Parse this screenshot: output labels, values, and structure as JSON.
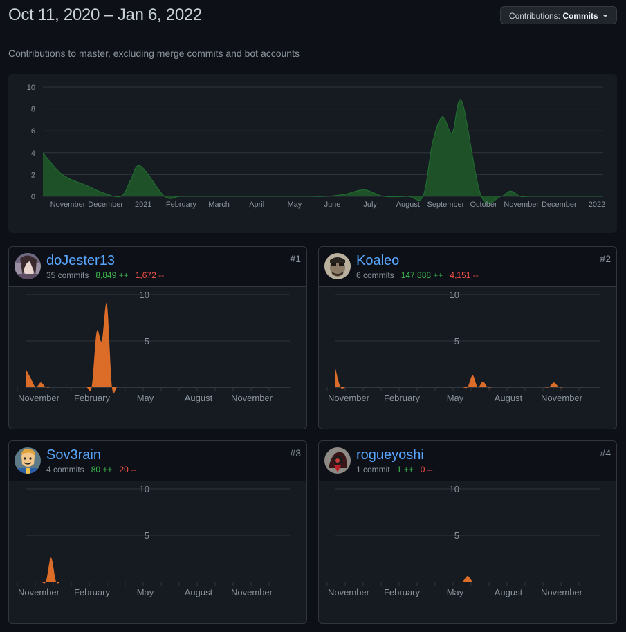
{
  "header": {
    "title": "Oct 11, 2020 – Jan 6, 2022",
    "dropdown_prefix": "Contributions:",
    "dropdown_value": "Commits"
  },
  "subtitle": "Contributions to master, excluding merge commits and bot accounts",
  "colors": {
    "main_fill": "#1e5127",
    "main_stroke": "#26a641",
    "user_fill": "#db6d28",
    "grid": "#30363d",
    "tick": "#8b949e"
  },
  "chart_data": [
    {
      "type": "area",
      "title": "Commits over time (all contributors)",
      "y_ticks": [
        "0",
        "2",
        "4",
        "6",
        "8",
        "10"
      ],
      "ylim": [
        0,
        10
      ],
      "x_labels": [
        "November",
        "December",
        "2021",
        "February",
        "March",
        "April",
        "May",
        "June",
        "July",
        "August",
        "September",
        "October",
        "November",
        "December",
        "2022"
      ],
      "x": [
        0,
        4,
        9,
        12,
        16,
        18,
        20,
        25,
        28,
        30,
        35,
        38,
        40,
        42,
        44,
        46,
        48,
        50,
        52,
        55,
        58,
        62,
        66,
        70,
        75,
        78,
        80,
        82,
        84,
        86,
        90,
        94,
        96,
        98,
        100,
        108,
        115
      ],
      "series": [
        {
          "name": "Commits",
          "values": [
            4,
            2,
            1,
            0.4,
            0,
            1.5,
            2.8,
            0,
            0,
            0,
            0,
            0,
            0,
            0,
            0,
            0,
            0,
            0,
            0,
            0,
            0,
            0.2,
            0.6,
            0,
            0,
            0,
            5,
            7.3,
            5.8,
            8.7,
            0,
            0,
            0.5,
            0,
            0,
            0,
            0
          ]
        }
      ]
    },
    {
      "type": "area",
      "title": "doJester13 commits",
      "y_ticks": [
        "5",
        "10"
      ],
      "ylim": [
        0,
        10
      ],
      "x_labels": [
        "November",
        "February",
        "May",
        "August",
        "November"
      ],
      "series": [
        {
          "name": "doJester13",
          "values": [
            2,
            1,
            0,
            0.5,
            0,
            0,
            0,
            0,
            0,
            0,
            0,
            0,
            0,
            0,
            6,
            5,
            9,
            0,
            0,
            0,
            0,
            0,
            0,
            0,
            0,
            0,
            0,
            0,
            0,
            0,
            0,
            0,
            0,
            0,
            0,
            0,
            0,
            0,
            0,
            0,
            0,
            0,
            0,
            0,
            0,
            0,
            0,
            0,
            0,
            0,
            0,
            0,
            0
          ]
        }
      ]
    },
    {
      "type": "area",
      "title": "Koaleo commits",
      "y_ticks": [
        "5",
        "10"
      ],
      "ylim": [
        0,
        10
      ],
      "x_labels": [
        "November",
        "February",
        "May",
        "August",
        "November"
      ],
      "series": [
        {
          "name": "Koaleo",
          "values": [
            2,
            0,
            0,
            0,
            0,
            0,
            0,
            0,
            0,
            0,
            0,
            0,
            0,
            0,
            0,
            0,
            0,
            0,
            0,
            0,
            0,
            0,
            0,
            0,
            0,
            0,
            0,
            1.3,
            0,
            0.6,
            0,
            0,
            0,
            0,
            0,
            0,
            0,
            0,
            0,
            0,
            0,
            0,
            0,
            0.5,
            0,
            0,
            0,
            0,
            0,
            0,
            0,
            0,
            0
          ]
        }
      ]
    },
    {
      "type": "area",
      "title": "Sov3rain commits",
      "y_ticks": [
        "5",
        "10"
      ],
      "ylim": [
        0,
        10
      ],
      "x_labels": [
        "November",
        "February",
        "May",
        "August",
        "November"
      ],
      "series": [
        {
          "name": "Sov3rain",
          "values": [
            0,
            0,
            0,
            0,
            0,
            2.6,
            0,
            0,
            0,
            0,
            0,
            0,
            0,
            0,
            0,
            0,
            0,
            0,
            0,
            0,
            0,
            0,
            0,
            0,
            0,
            0,
            0,
            0,
            0,
            0,
            0,
            0,
            0,
            0,
            0,
            0,
            0,
            0,
            0,
            0,
            0,
            0,
            0,
            0,
            0,
            0,
            0,
            0,
            0,
            0,
            0,
            0,
            0
          ]
        }
      ]
    },
    {
      "type": "area",
      "title": "rogueyoshi commits",
      "y_ticks": [
        "5",
        "10"
      ],
      "ylim": [
        0,
        10
      ],
      "x_labels": [
        "November",
        "February",
        "May",
        "August",
        "November"
      ],
      "series": [
        {
          "name": "rogueyoshi",
          "values": [
            0,
            0,
            0,
            0,
            0,
            0,
            0,
            0,
            0,
            0,
            0,
            0,
            0,
            0,
            0,
            0,
            0,
            0,
            0,
            0,
            0,
            0,
            0,
            0,
            0,
            0,
            0.6,
            0,
            0,
            0,
            0,
            0,
            0,
            0,
            0,
            0,
            0,
            0,
            0,
            0,
            0,
            0,
            0,
            0,
            0,
            0,
            0,
            0,
            0,
            0,
            0,
            0,
            0
          ]
        }
      ]
    }
  ],
  "contributors": [
    {
      "username": "doJester13",
      "commits": "35 commits",
      "additions": "8,849 ++",
      "deletions": "1,672 --",
      "rank": "#1",
      "avatar": "portrait-avatar"
    },
    {
      "username": "Koaleo",
      "commits": "6 commits",
      "additions": "147,888 ++",
      "deletions": "4,151 --",
      "rank": "#2",
      "avatar": "face-avatar"
    },
    {
      "username": "Sov3rain",
      "commits": "4 commits",
      "additions": "80 ++",
      "deletions": "20 --",
      "rank": "#3",
      "avatar": "vault-boy-avatar"
    },
    {
      "username": "rogueyoshi",
      "commits": "1 commit",
      "additions": "1 ++",
      "deletions": "0 --",
      "rank": "#4",
      "avatar": "character-avatar"
    }
  ]
}
